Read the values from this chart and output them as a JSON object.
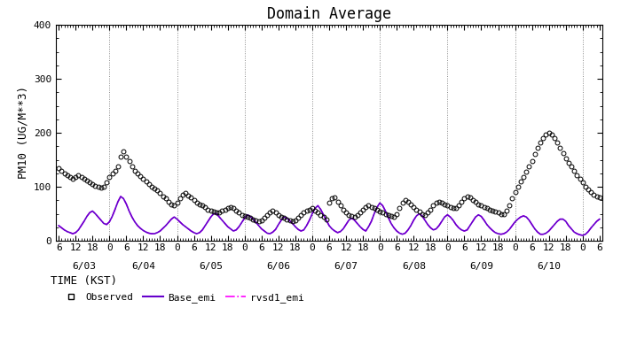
{
  "title": "Domain Average",
  "xlabel": "TIME (KST)",
  "ylabel": "PM10 (UG/M**3)",
  "ylim": [
    0,
    400
  ],
  "yticks": [
    0,
    100,
    200,
    300,
    400
  ],
  "background_color": "#ffffff",
  "grid_color": "#aaaaaa",
  "title_fontsize": 12,
  "axis_fontsize": 9,
  "tick_fontsize": 8,
  "days": [
    "6/03",
    "6/04",
    "6/05",
    "6/06",
    "6/07",
    "6/08",
    "6/09",
    "6/10"
  ],
  "n_hours": 193,
  "observed": [
    135,
    130,
    125,
    122,
    118,
    115,
    118,
    122,
    118,
    115,
    112,
    108,
    105,
    102,
    100,
    98,
    100,
    108,
    118,
    125,
    130,
    138,
    155,
    165,
    155,
    148,
    138,
    130,
    125,
    120,
    115,
    110,
    105,
    100,
    97,
    93,
    88,
    82,
    78,
    72,
    68,
    65,
    70,
    78,
    85,
    88,
    84,
    80,
    75,
    70,
    68,
    65,
    62,
    58,
    56,
    54,
    52,
    52,
    55,
    58,
    60,
    62,
    60,
    56,
    52,
    48,
    46,
    44,
    42,
    40,
    38,
    36,
    38,
    42,
    48,
    52,
    55,
    52,
    48,
    44,
    42,
    40,
    38,
    36,
    38,
    42,
    48,
    52,
    55,
    58,
    60,
    56,
    52,
    48,
    44,
    40,
    70,
    78,
    80,
    72,
    65,
    58,
    52,
    48,
    46,
    44,
    48,
    52,
    58,
    62,
    65,
    62,
    60,
    57,
    54,
    52,
    50,
    48,
    46,
    44,
    50,
    60,
    70,
    75,
    72,
    68,
    62,
    58,
    54,
    50,
    48,
    52,
    58,
    65,
    70,
    72,
    70,
    68,
    65,
    62,
    60,
    60,
    65,
    72,
    78,
    82,
    80,
    75,
    72,
    68,
    65,
    62,
    60,
    58,
    56,
    54,
    52,
    50,
    50,
    55,
    65,
    78,
    90,
    100,
    110,
    118,
    128,
    138,
    148,
    160,
    172,
    182,
    190,
    196,
    200,
    196,
    190,
    182,
    172,
    162,
    152,
    145,
    138,
    130,
    122,
    115,
    108,
    100,
    95,
    90,
    85,
    82,
    80
  ],
  "base_emi": [
    28,
    24,
    20,
    17,
    15,
    13,
    15,
    20,
    28,
    36,
    45,
    52,
    55,
    50,
    44,
    38,
    32,
    30,
    35,
    45,
    58,
    72,
    82,
    78,
    68,
    55,
    44,
    35,
    28,
    23,
    19,
    16,
    14,
    13,
    13,
    15,
    18,
    23,
    28,
    34,
    40,
    44,
    40,
    35,
    30,
    26,
    22,
    18,
    15,
    13,
    15,
    20,
    28,
    36,
    44,
    50,
    50,
    44,
    38,
    32,
    26,
    22,
    18,
    20,
    26,
    34,
    42,
    48,
    45,
    40,
    34,
    28,
    22,
    18,
    14,
    13,
    16,
    21,
    30,
    38,
    44,
    42,
    37,
    32,
    26,
    21,
    18,
    20,
    28,
    38,
    50,
    60,
    65,
    58,
    48,
    38,
    28,
    22,
    18,
    15,
    17,
    22,
    30,
    38,
    42,
    38,
    32,
    26,
    21,
    18,
    26,
    36,
    50,
    62,
    70,
    65,
    55,
    43,
    32,
    24,
    18,
    14,
    12,
    14,
    20,
    28,
    38,
    46,
    50,
    46,
    38,
    30,
    24,
    20,
    22,
    28,
    36,
    44,
    48,
    44,
    38,
    30,
    24,
    20,
    18,
    20,
    28,
    36,
    44,
    48,
    45,
    38,
    30,
    24,
    19,
    15,
    13,
    12,
    13,
    16,
    21,
    28,
    35,
    40,
    44,
    46,
    44,
    38,
    30,
    22,
    16,
    12,
    12,
    14,
    18,
    24,
    30,
    36,
    40,
    40,
    36,
    28,
    22,
    16,
    13,
    11,
    10,
    12,
    17,
    24,
    30,
    36,
    40
  ],
  "rvsd1_emi": [
    28,
    24,
    20,
    17,
    15,
    13,
    15,
    20,
    28,
    36,
    45,
    52,
    55,
    50,
    44,
    38,
    32,
    30,
    35,
    45,
    58,
    72,
    82,
    78,
    68,
    55,
    44,
    35,
    28,
    23,
    19,
    16,
    14,
    13,
    13,
    15,
    18,
    23,
    28,
    34,
    40,
    44,
    40,
    35,
    30,
    26,
    22,
    18,
    15,
    13,
    15,
    20,
    28,
    36,
    44,
    50,
    50,
    44,
    38,
    32,
    26,
    22,
    18,
    20,
    26,
    34,
    42,
    48,
    45,
    40,
    34,
    28,
    22,
    18,
    14,
    13,
    16,
    21,
    30,
    38,
    44,
    42,
    37,
    32,
    26,
    21,
    18,
    20,
    28,
    38,
    50,
    60,
    65,
    58,
    48,
    38,
    28,
    22,
    18,
    15,
    17,
    22,
    30,
    38,
    42,
    38,
    32,
    26,
    21,
    18,
    26,
    36,
    50,
    62,
    70,
    65,
    55,
    43,
    32,
    24,
    18,
    14,
    12,
    14,
    20,
    28,
    38,
    46,
    50,
    46,
    38,
    30,
    24,
    20,
    22,
    28,
    36,
    44,
    48,
    44,
    38,
    30,
    24,
    20,
    18,
    20,
    28,
    36,
    44,
    48,
    45,
    38,
    30,
    24,
    19,
    15,
    13,
    12,
    13,
    16,
    21,
    28,
    35,
    40,
    44,
    46,
    44,
    38,
    30,
    22,
    16,
    12,
    12,
    14,
    18,
    24,
    30,
    36,
    40,
    40,
    36,
    28,
    22,
    16,
    13,
    11,
    10,
    12,
    17,
    24,
    30,
    36,
    40
  ],
  "base_emi_color": "#6600cc",
  "rvsd1_emi_color": "#ff00ff",
  "observed_color": "#000000",
  "legend_labels": [
    "Observed",
    "Base_emi",
    "rvsd1_emi"
  ]
}
